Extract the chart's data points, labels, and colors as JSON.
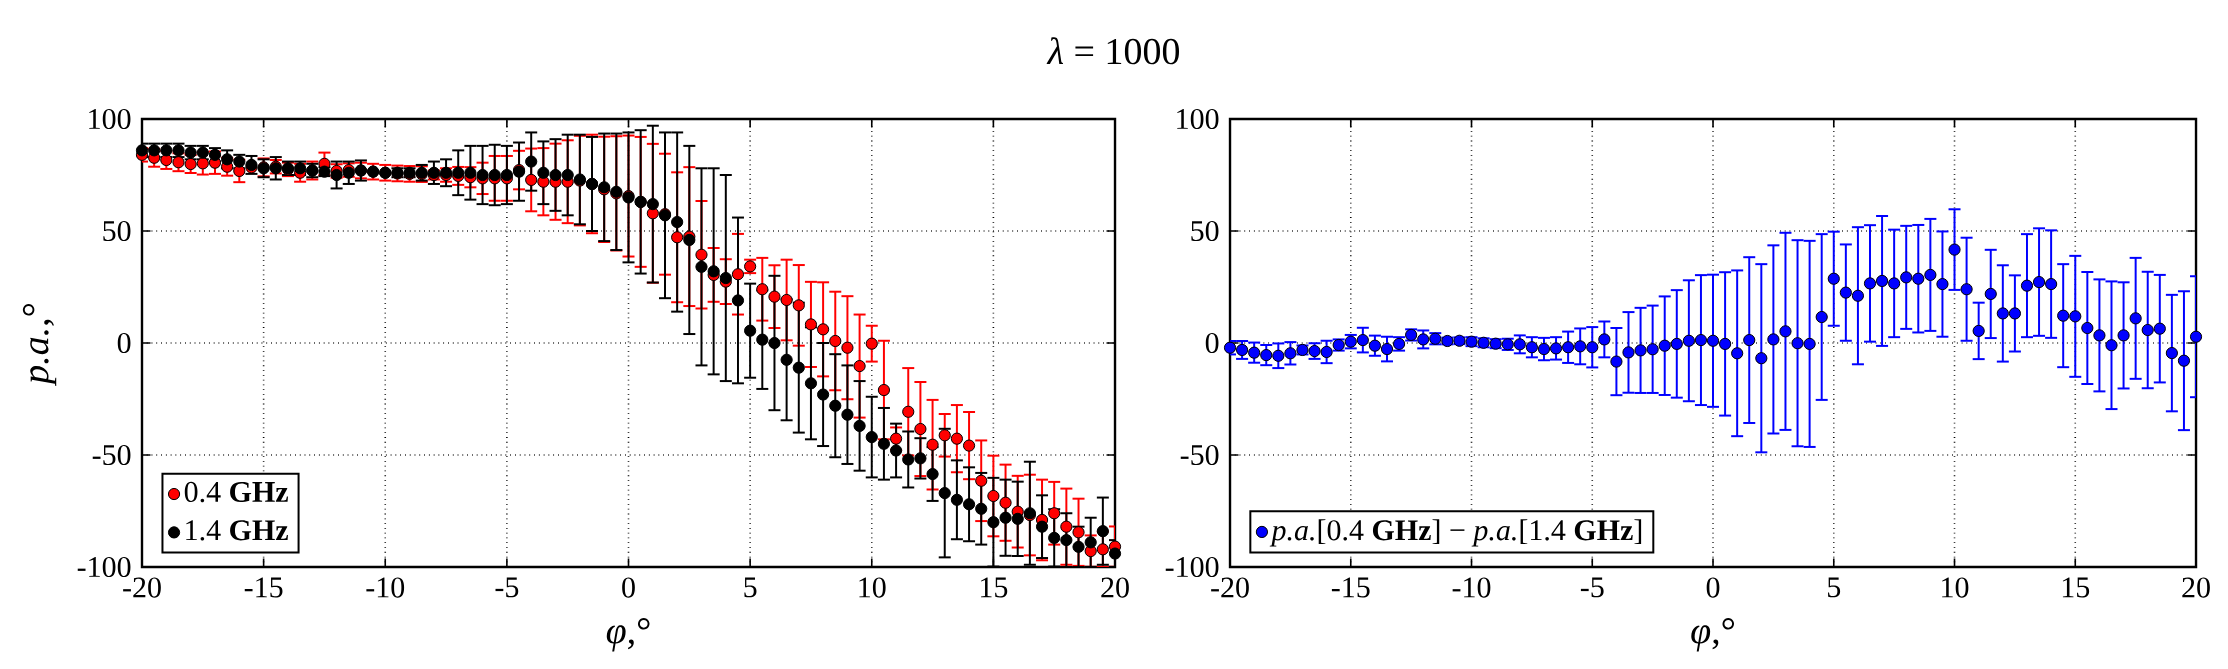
{
  "chart_data": [
    {
      "type": "scatter",
      "title": "*λ* = 1000",
      "xlabel": "*φ*,°",
      "ylabel": "*p.a.*,°",
      "x": [
        -20,
        -19.5,
        -19,
        -18.5,
        -18,
        -17.5,
        -17,
        -16.5,
        -16,
        -15.5,
        -15,
        -14.5,
        -14,
        -13.5,
        -13,
        -12.5,
        -12,
        -11.5,
        -11,
        -10.5,
        -10,
        -9.5,
        -9,
        -8.5,
        -8,
        -7.5,
        -7,
        -6.5,
        -6,
        -5.5,
        -5,
        -4.5,
        -4,
        -3.5,
        -3,
        -2.5,
        -2,
        -1.5,
        -1,
        -0.5,
        0,
        0.5,
        1,
        1.5,
        2,
        2.5,
        3,
        3.5,
        4,
        4.5,
        5,
        5.5,
        6,
        6.5,
        7,
        7.5,
        8,
        8.5,
        9,
        9.5,
        10,
        10.5,
        11,
        11.5,
        12,
        12.5,
        13,
        13.5,
        14,
        14.5,
        15,
        15.5,
        16,
        16.5,
        17,
        17.5,
        18,
        18.5,
        19,
        19.5,
        20
      ],
      "series": [
        {
          "name": "0.4 **GHz**",
          "color": "#ff0000",
          "values": [
            84,
            82.7,
            81.7,
            80.7,
            79.9,
            80.2,
            80.5,
            78.7,
            76.8,
            78.4,
            78.4,
            78.7,
            77.5,
            76,
            77,
            80,
            76.8,
            77.2,
            77,
            76.5,
            76,
            75.7,
            75.5,
            75.4,
            75,
            75,
            74.6,
            74,
            73.5,
            73.5,
            73.5,
            77.2,
            72.8,
            72,
            72,
            72,
            72.5,
            71,
            68.6,
            66.8,
            65.6,
            63,
            57.9,
            57.5,
            47.2,
            47.5,
            39.4,
            30.4,
            27.4,
            30.7,
            34.2,
            24,
            20.7,
            19.2,
            16.8,
            8.3,
            6.1,
            0.9,
            -2.1,
            -10.3,
            -0.3,
            -21,
            -42.7,
            -30.7,
            -38.4,
            -45.4,
            -41.2,
            -42.7,
            -45.8,
            -61.5,
            -68.3,
            -71.3,
            -75.3,
            -76.8,
            -79,
            -76,
            -82,
            -84.5,
            -92.9,
            -92.1,
            -90.9
          ],
          "errors": [
            3,
            4,
            4,
            4,
            4,
            5,
            5,
            4,
            5,
            null,
            4,
            3,
            3,
            4,
            4,
            5,
            3,
            3,
            3.5,
            3.5,
            3.5,
            3.5,
            3.5,
            3.5,
            2,
            3,
            4,
            4.5,
            7,
            10,
            10,
            8.6,
            14,
            15,
            17,
            18.5,
            20,
            22,
            23.5,
            25.5,
            27,
            29,
            31,
            27,
            29,
            31,
            24,
            12,
            10,
            18,
            3,
            14,
            14,
            18,
            18,
            19,
            21,
            22,
            23,
            23,
            8,
            22,
            5,
            19.5,
            21,
            20,
            9.5,
            15,
            15,
            18,
            18,
            17,
            16,
            18,
            18,
            14,
            17,
            15,
            7,
            7.9,
            9
          ]
        },
        {
          "name": "1.4 **GHz**",
          "color": "#000000",
          "values": [
            86,
            86,
            86,
            86,
            85,
            85,
            84,
            82,
            81,
            79.5,
            78,
            78,
            78,
            78,
            77,
            76.5,
            75,
            76,
            77,
            76.5,
            76,
            76,
            76,
            76,
            76,
            76,
            76,
            76,
            75,
            75,
            75,
            76.5,
            81,
            76,
            75,
            75,
            73,
            71,
            69.5,
            67.5,
            65,
            63,
            62,
            57,
            54,
            46,
            34,
            32,
            29,
            19,
            5.5,
            1.5,
            0,
            -7.5,
            -11,
            -18,
            -23,
            -28,
            -32,
            -37,
            -42,
            -45,
            -48,
            -52,
            -51.5,
            -58.5,
            -67,
            -70,
            -72,
            -74,
            -80,
            -78,
            -78.5,
            -76,
            -82,
            -87,
            -88,
            -91,
            -89,
            -84,
            -94
          ],
          "errors": [
            3,
            3,
            3,
            3,
            3,
            3,
            3,
            4,
            3,
            4,
            4,
            5,
            3,
            3,
            3,
            2,
            6,
            5,
            4.5,
            null,
            null,
            2,
            2,
            3.5,
            5,
            6,
            10,
            12,
            13,
            13.5,
            13,
            13,
            13,
            14,
            16,
            18,
            20,
            21,
            24,
            26,
            29,
            32,
            35,
            37,
            40,
            42,
            44,
            46,
            46,
            37,
            21,
            22,
            30,
            27,
            29,
            25,
            23,
            23,
            22,
            20,
            18,
            16,
            12,
            12.5,
            9,
            12,
            28.7,
            17.6,
            16.5,
            16,
            19.8,
            17,
            16.6,
            23,
            14,
            12.8,
            12,
            9,
            11,
            15,
            6
          ]
        }
      ],
      "xlim": [
        -20,
        20
      ],
      "ylim": [
        -100,
        100
      ],
      "xticks": [
        -20,
        -15,
        -10,
        -5,
        0,
        5,
        10,
        15,
        20
      ],
      "yticks": [
        -100,
        -50,
        0,
        50,
        100
      ],
      "grid": true,
      "legend": "bottom left",
      "marker": "circle"
    },
    {
      "type": "scatter",
      "xlabel": "*φ*,°",
      "x": [
        -20,
        -19.5,
        -19,
        -18.5,
        -18,
        -17.5,
        -17,
        -16.5,
        -16,
        -15.5,
        -15,
        -14.5,
        -14,
        -13.5,
        -13,
        -12.5,
        -12,
        -11.5,
        -11,
        -10.5,
        -10,
        -9.5,
        -9,
        -8.5,
        -8,
        -7.5,
        -7,
        -6.5,
        -6,
        -5.5,
        -5,
        -4.5,
        -4,
        -3.5,
        -3,
        -2.5,
        -2,
        -1.5,
        -1,
        -0.5,
        0,
        0.5,
        1,
        1.5,
        2,
        2.5,
        3,
        3.5,
        4,
        4.5,
        5,
        5.5,
        6,
        6.5,
        7,
        7.5,
        8,
        8.5,
        9,
        9.5,
        10,
        10.5,
        11,
        11.5,
        12,
        12.5,
        13,
        13.5,
        14,
        14.5,
        15,
        15.5,
        16,
        16.5,
        17,
        17.5,
        18,
        18.5,
        19,
        19.5,
        20
      ],
      "series": [
        {
          "name": "*p.a.*[0.4 **GHz**] − *p.a.*[1.4 **GHz**]",
          "color": "#0000ff",
          "values": [
            -2.1,
            -3.1,
            -4.3,
            -5.4,
            -5.7,
            -4.6,
            -3.1,
            -3.6,
            -4,
            -0.9,
            0.6,
            1.3,
            -1.2,
            -2.7,
            -0.4,
            3.6,
            1.6,
            1.9,
            0.9,
            1,
            0.6,
            0.1,
            -0.3,
            -0.6,
            -0.6,
            -1.9,
            -2.7,
            -2.4,
            -1.9,
            -1.5,
            -1.9,
            1.6,
            -8.3,
            -4.2,
            -3.3,
            -2.8,
            -1.2,
            -0.4,
            1,
            1.3,
            1,
            -0.4,
            -4.6,
            1.3,
            -6.8,
            1.6,
            5.2,
            -0.1,
            -0.4,
            11.6,
            28.7,
            22.5,
            21.1,
            26.6,
            27.7,
            26.6,
            29.3,
            28.7,
            30.4,
            26.3,
            41.7,
            24,
            5.4,
            21.9,
            13.2,
            13.2,
            25.6,
            27.2,
            26.3,
            12.2,
            11.9,
            6.7,
            3.4,
            -1,
            3.4,
            11,
            5.8,
            6.4,
            -4.5,
            -7.9,
            2.8
          ],
          "errors": [
            3,
            4,
            4.5,
            4.5,
            5.5,
            5,
            2,
            3.5,
            5,
            2.5,
            3,
            5.5,
            4.5,
            5.5,
            3,
            2.5,
            4,
            2.5,
            1.5,
            1.5,
            2,
            2,
            2,
            2.5,
            4,
            4.5,
            5,
            5,
            7,
            8,
            9,
            8,
            15,
            18,
            19,
            19.5,
            22,
            24,
            27,
            29,
            29.5,
            32,
            37,
            37,
            42,
            42,
            44,
            46,
            46,
            37,
            21,
            21.5,
            30.6,
            26,
            29,
            24,
            23,
            24,
            25,
            23.5,
            18,
            23,
            12.6,
            19.7,
            21.5,
            17,
            23,
            24,
            24,
            23,
            27,
            25,
            25,
            28.5,
            23.7,
            27,
            26,
            24,
            26,
            31,
            27
          ]
        }
      ],
      "xlim": [
        -20,
        20
      ],
      "ylim": [
        -100,
        100
      ],
      "xticks": [
        -20,
        -15,
        -10,
        -5,
        0,
        5,
        10,
        15,
        20
      ],
      "yticks": [
        -100,
        -50,
        0,
        50,
        100
      ],
      "grid": true,
      "legend": "bottom left",
      "marker": "circle"
    }
  ]
}
